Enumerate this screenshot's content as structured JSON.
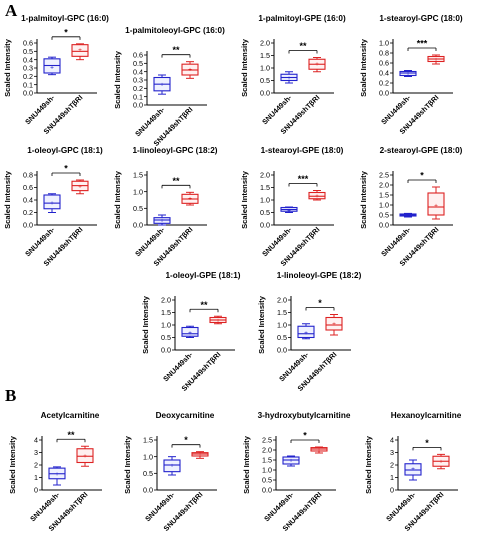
{
  "figure": {
    "panel_a_label": "A",
    "panel_b_label": "B"
  },
  "colors": {
    "control": "#2222cc",
    "treated": "#dd2222",
    "control_fill": "#eef0ff",
    "treated_fill": "#fff0f0"
  },
  "chart_data": [
    {
      "type": "box",
      "title": "1-palmitoyl-GPC (16:0)",
      "ylabel": "Scaled Intensity",
      "categories": [
        "SNU449sh-",
        "SNU449shTβRI"
      ],
      "yticks": [
        "0.0",
        "0.1",
        "0.2",
        "0.3",
        "0.4",
        "0.5",
        "0.6"
      ],
      "ylim": [
        0,
        0.6
      ],
      "significance": "*",
      "boxes": [
        {
          "group": "SNU449sh-",
          "min": 0.22,
          "q1": 0.24,
          "median": 0.33,
          "q3": 0.41,
          "max": 0.43,
          "mean": 0.31
        },
        {
          "group": "SNU449shTβRI",
          "min": 0.4,
          "q1": 0.44,
          "median": 0.5,
          "q3": 0.58,
          "max": 0.59,
          "mean": 0.52
        }
      ]
    },
    {
      "type": "box",
      "title": "1-palmitoleoyl-GPC (16:0)",
      "ylabel": "Scaled Intensity",
      "categories": [
        "SNU449sh-",
        "SNU449shTβRI"
      ],
      "yticks": [
        "0.0",
        "0.1",
        "0.2",
        "0.3",
        "0.4",
        "0.5",
        "0.6"
      ],
      "ylim": [
        0,
        0.6
      ],
      "significance": "**",
      "boxes": [
        {
          "group": "SNU449sh-",
          "min": 0.13,
          "q1": 0.17,
          "median": 0.25,
          "q3": 0.33,
          "max": 0.36,
          "mean": 0.25
        },
        {
          "group": "SNU449shTβRI",
          "min": 0.32,
          "q1": 0.36,
          "median": 0.42,
          "q3": 0.49,
          "max": 0.52,
          "mean": 0.43
        }
      ]
    },
    {
      "type": "box",
      "title": "1-palmitoyl-GPE (16:0)",
      "ylabel": "Scaled Intensity",
      "categories": [
        "SNU449sh-",
        "SNU449shTβRI"
      ],
      "yticks": [
        "0.0",
        "0.5",
        "1.0",
        "1.5",
        "2.0"
      ],
      "ylim": [
        0,
        2.0
      ],
      "significance": "**",
      "boxes": [
        {
          "group": "SNU449sh-",
          "min": 0.4,
          "q1": 0.5,
          "median": 0.62,
          "q3": 0.75,
          "max": 0.85,
          "mean": 0.62
        },
        {
          "group": "SNU449shTβRI",
          "min": 0.85,
          "q1": 0.95,
          "median": 1.15,
          "q3": 1.35,
          "max": 1.42,
          "mean": 1.18
        }
      ]
    },
    {
      "type": "box",
      "title": "1-stearoyl-GPC (18:0)",
      "ylabel": "Scaled Intensity",
      "categories": [
        "SNU449sh-",
        "SNU449shTβRI"
      ],
      "yticks": [
        "0.0",
        "0.2",
        "0.4",
        "0.6",
        "0.8",
        "1.0"
      ],
      "ylim": [
        0,
        1.0
      ],
      "significance": "***",
      "boxes": [
        {
          "group": "SNU449sh-",
          "min": 0.33,
          "q1": 0.35,
          "median": 0.4,
          "q3": 0.43,
          "max": 0.45,
          "mean": 0.4
        },
        {
          "group": "SNU449shTβRI",
          "min": 0.58,
          "q1": 0.63,
          "median": 0.68,
          "q3": 0.73,
          "max": 0.76,
          "mean": 0.68
        }
      ]
    },
    {
      "type": "box",
      "title": "1-oleoyl-GPC (18:1)",
      "ylabel": "Scaled Intensity",
      "categories": [
        "SNU449sh-",
        "SNU449shTβRI"
      ],
      "yticks": [
        "0.0",
        "0.2",
        "0.4",
        "0.6",
        "0.8"
      ],
      "ylim": [
        0,
        0.8
      ],
      "significance": "*",
      "boxes": [
        {
          "group": "SNU449sh-",
          "min": 0.2,
          "q1": 0.26,
          "median": 0.35,
          "q3": 0.48,
          "max": 0.5,
          "mean": 0.36
        },
        {
          "group": "SNU449shTβRI",
          "min": 0.5,
          "q1": 0.55,
          "median": 0.63,
          "q3": 0.7,
          "max": 0.72,
          "mean": 0.62
        }
      ]
    },
    {
      "type": "box",
      "title": "1-linoleoyl-GPC (18:2)",
      "ylabel": "Scaled Intensity",
      "categories": [
        "SNU449sh-",
        "SNU449shTβRI"
      ],
      "yticks": [
        "0.0",
        "0.5",
        "1.0",
        "1.5"
      ],
      "ylim": [
        0,
        1.5
      ],
      "significance": "**",
      "boxes": [
        {
          "group": "SNU449sh-",
          "min": 0.0,
          "q1": 0.05,
          "median": 0.15,
          "q3": 0.22,
          "max": 0.3,
          "mean": 0.15
        },
        {
          "group": "SNU449shTβRI",
          "min": 0.6,
          "q1": 0.65,
          "median": 0.78,
          "q3": 0.92,
          "max": 0.98,
          "mean": 0.8
        }
      ]
    },
    {
      "type": "box",
      "title": "1-stearoyl-GPE (18:0)",
      "ylabel": "Scaled Intensity",
      "categories": [
        "SNU449sh-",
        "SNU449shTβRI"
      ],
      "yticks": [
        "0.0",
        "0.5",
        "1.0",
        "1.5",
        "2.0"
      ],
      "ylim": [
        0,
        2.0
      ],
      "significance": "***",
      "boxes": [
        {
          "group": "SNU449sh-",
          "min": 0.5,
          "q1": 0.55,
          "median": 0.62,
          "q3": 0.7,
          "max": 0.72,
          "mean": 0.6
        },
        {
          "group": "SNU449shTβRI",
          "min": 1.0,
          "q1": 1.05,
          "median": 1.15,
          "q3": 1.3,
          "max": 1.38,
          "mean": 1.18
        }
      ]
    },
    {
      "type": "box",
      "title": "2-stearoyl-GPE (18:0)",
      "ylabel": "Scaled Intensity",
      "categories": [
        "SNU449sh-",
        "SNU449shTβRI"
      ],
      "yticks": [
        "0.0",
        "0.5",
        "1.0",
        "1.5",
        "2.0",
        "2.5"
      ],
      "ylim": [
        0,
        2.5
      ],
      "significance": "*",
      "boxes": [
        {
          "group": "SNU449sh-",
          "min": 0.4,
          "q1": 0.45,
          "median": 0.5,
          "q3": 0.55,
          "max": 0.58,
          "mean": 0.5
        },
        {
          "group": "SNU449shTβRI",
          "min": 0.3,
          "q1": 0.5,
          "median": 0.9,
          "q3": 1.6,
          "max": 1.9,
          "mean": 1.0
        }
      ]
    },
    {
      "type": "box",
      "title": "1-oleoyl-GPE (18:1)",
      "ylabel": "Scaled Intensity",
      "categories": [
        "SNU449sh-",
        "SNU449shTβRI"
      ],
      "yticks": [
        "0.0",
        "0.5",
        "1.0",
        "1.5",
        "2.0"
      ],
      "ylim": [
        0,
        2.0
      ],
      "significance": "**",
      "boxes": [
        {
          "group": "SNU449sh-",
          "min": 0.5,
          "q1": 0.55,
          "median": 0.65,
          "q3": 0.9,
          "max": 0.95,
          "mean": 0.7
        },
        {
          "group": "SNU449shTβRI",
          "min": 1.05,
          "q1": 1.1,
          "median": 1.2,
          "q3": 1.3,
          "max": 1.35,
          "mean": 1.2
        }
      ]
    },
    {
      "type": "box",
      "title": "1-linoleoyl-GPE (18:2)",
      "ylabel": "Scaled Intensity",
      "categories": [
        "SNU449sh-",
        "SNU449shTβRI"
      ],
      "yticks": [
        "0.0",
        "0.5",
        "1.0",
        "1.5",
        "2.0"
      ],
      "ylim": [
        0,
        2.0
      ],
      "significance": "*",
      "boxes": [
        {
          "group": "SNU449sh-",
          "min": 0.45,
          "q1": 0.5,
          "median": 0.65,
          "q3": 0.95,
          "max": 1.05,
          "mean": 0.7
        },
        {
          "group": "SNU449shTβRI",
          "min": 0.6,
          "q1": 0.8,
          "median": 1.0,
          "q3": 1.3,
          "max": 1.42,
          "mean": 1.05
        }
      ]
    },
    {
      "type": "box",
      "title": "Acetylcarnitine",
      "ylabel": "Scaled Intensity",
      "categories": [
        "SNU449sh-",
        "SNU449shTβRI"
      ],
      "yticks": [
        "0",
        "1",
        "2",
        "3",
        "4"
      ],
      "ylim": [
        0,
        4
      ],
      "significance": "**",
      "boxes": [
        {
          "group": "SNU449sh-",
          "min": 0.4,
          "q1": 0.9,
          "median": 1.3,
          "q3": 1.75,
          "max": 1.85,
          "mean": 1.3
        },
        {
          "group": "SNU449shTβRI",
          "min": 1.9,
          "q1": 2.2,
          "median": 2.7,
          "q3": 3.3,
          "max": 3.5,
          "mean": 2.75
        }
      ]
    },
    {
      "type": "box",
      "title": "Deoxycarnitine",
      "ylabel": "Scaled Intensity",
      "categories": [
        "SNU449sh-",
        "SNU449shTβRI"
      ],
      "yticks": [
        "0.0",
        "0.5",
        "1.0",
        "1.5"
      ],
      "ylim": [
        0,
        1.5
      ],
      "significance": "*",
      "boxes": [
        {
          "group": "SNU449sh-",
          "min": 0.45,
          "q1": 0.55,
          "median": 0.75,
          "q3": 0.9,
          "max": 1.0,
          "mean": 0.75
        },
        {
          "group": "SNU449shTβRI",
          "min": 0.95,
          "q1": 1.02,
          "median": 1.08,
          "q3": 1.12,
          "max": 1.15,
          "mean": 1.08
        }
      ]
    },
    {
      "type": "box",
      "title": "3-hydroxybutylcarnitine",
      "ylabel": "Scaled Intensity",
      "categories": [
        "SNU449sh-",
        "SNU449shTβRI"
      ],
      "yticks": [
        "0.0",
        "0.5",
        "1.0",
        "1.5",
        "2.0",
        "2.5"
      ],
      "ylim": [
        0,
        2.5
      ],
      "significance": "*",
      "boxes": [
        {
          "group": "SNU449sh-",
          "min": 1.2,
          "q1": 1.3,
          "median": 1.5,
          "q3": 1.65,
          "max": 1.7,
          "mean": 1.5
        },
        {
          "group": "SNU449shTβRI",
          "min": 1.85,
          "q1": 1.95,
          "median": 2.05,
          "q3": 2.12,
          "max": 2.15,
          "mean": 2.05
        }
      ]
    },
    {
      "type": "box",
      "title": "Hexanoylcarnitine",
      "ylabel": "Scaled Intensity",
      "categories": [
        "SNU449sh-",
        "SNU449shTβRI"
      ],
      "yticks": [
        "0",
        "1",
        "2",
        "3",
        "4"
      ],
      "ylim": [
        0,
        4
      ],
      "significance": "*",
      "boxes": [
        {
          "group": "SNU449sh-",
          "min": 0.8,
          "q1": 1.2,
          "median": 1.6,
          "q3": 2.1,
          "max": 2.4,
          "mean": 1.7
        },
        {
          "group": "SNU449shTβRI",
          "min": 1.7,
          "q1": 1.9,
          "median": 2.3,
          "q3": 2.7,
          "max": 2.85,
          "mean": 2.3
        }
      ]
    }
  ]
}
